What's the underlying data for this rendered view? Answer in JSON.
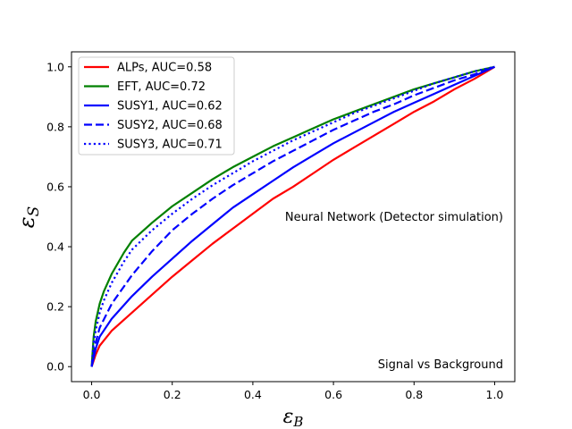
{
  "chart_data": {
    "type": "line",
    "xlabel_main": "ε",
    "xlabel_sub": "B",
    "ylabel_main": "ε",
    "ylabel_sub": "S",
    "xlim": [
      -0.05,
      1.05
    ],
    "ylim": [
      -0.05,
      1.05
    ],
    "xticks": [
      0.0,
      0.2,
      0.4,
      0.6,
      0.8,
      1.0
    ],
    "yticks": [
      0.0,
      0.2,
      0.4,
      0.6,
      0.8,
      1.0
    ],
    "xtick_labels": [
      "0.0",
      "0.2",
      "0.4",
      "0.6",
      "0.8",
      "1.0"
    ],
    "ytick_labels": [
      "0.0",
      "0.2",
      "0.4",
      "0.6",
      "0.8",
      "1.0"
    ],
    "grid": false,
    "legend_position": "top-left",
    "annotations": {
      "method": "Neural Network (Detector simulation)",
      "task": "Signal vs Background"
    },
    "series": [
      {
        "name": "ALPs, AUC=0.58",
        "color": "#ff0000",
        "dash": "solid",
        "x": [
          0,
          0.01,
          0.02,
          0.05,
          0.1,
          0.15,
          0.2,
          0.25,
          0.3,
          0.35,
          0.4,
          0.45,
          0.5,
          0.55,
          0.6,
          0.65,
          0.7,
          0.75,
          0.8,
          0.85,
          0.9,
          0.95,
          1.0
        ],
        "y": [
          0,
          0.04,
          0.07,
          0.12,
          0.18,
          0.24,
          0.3,
          0.355,
          0.41,
          0.46,
          0.51,
          0.56,
          0.6,
          0.645,
          0.69,
          0.73,
          0.77,
          0.81,
          0.85,
          0.885,
          0.925,
          0.96,
          1.0
        ]
      },
      {
        "name": "EFT, AUC=0.72",
        "color": "#008000",
        "dash": "solid",
        "x": [
          0,
          0.005,
          0.01,
          0.02,
          0.03,
          0.05,
          0.08,
          0.1,
          0.15,
          0.2,
          0.25,
          0.3,
          0.35,
          0.4,
          0.45,
          0.5,
          0.55,
          0.6,
          0.65,
          0.7,
          0.75,
          0.8,
          0.85,
          0.9,
          0.95,
          1.0
        ],
        "y": [
          0,
          0.1,
          0.15,
          0.21,
          0.25,
          0.31,
          0.38,
          0.42,
          0.48,
          0.535,
          0.58,
          0.625,
          0.665,
          0.7,
          0.735,
          0.765,
          0.795,
          0.825,
          0.85,
          0.875,
          0.9,
          0.925,
          0.945,
          0.965,
          0.985,
          1.0
        ]
      },
      {
        "name": "SUSY1, AUC=0.62",
        "color": "#0000ff",
        "dash": "solid",
        "x": [
          0,
          0.01,
          0.02,
          0.05,
          0.1,
          0.15,
          0.2,
          0.25,
          0.3,
          0.35,
          0.4,
          0.45,
          0.5,
          0.55,
          0.6,
          0.65,
          0.7,
          0.75,
          0.8,
          0.85,
          0.9,
          0.95,
          1.0
        ],
        "y": [
          0,
          0.06,
          0.1,
          0.16,
          0.235,
          0.3,
          0.36,
          0.42,
          0.475,
          0.53,
          0.575,
          0.62,
          0.665,
          0.705,
          0.745,
          0.78,
          0.815,
          0.85,
          0.88,
          0.91,
          0.94,
          0.97,
          1.0
        ]
      },
      {
        "name": "SUSY2, AUC=0.68",
        "color": "#0000ff",
        "dash": "dashed",
        "x": [
          0,
          0.01,
          0.02,
          0.05,
          0.1,
          0.15,
          0.2,
          0.25,
          0.3,
          0.35,
          0.4,
          0.45,
          0.5,
          0.55,
          0.6,
          0.65,
          0.7,
          0.75,
          0.8,
          0.85,
          0.9,
          0.95,
          1.0
        ],
        "y": [
          0,
          0.08,
          0.13,
          0.21,
          0.305,
          0.385,
          0.455,
          0.51,
          0.56,
          0.605,
          0.645,
          0.685,
          0.72,
          0.755,
          0.79,
          0.82,
          0.85,
          0.875,
          0.905,
          0.93,
          0.955,
          0.975,
          1.0
        ]
      },
      {
        "name": "SUSY3, AUC=0.71",
        "color": "#0000ff",
        "dash": "dotted",
        "x": [
          0,
          0.005,
          0.01,
          0.02,
          0.03,
          0.05,
          0.08,
          0.1,
          0.15,
          0.2,
          0.25,
          0.3,
          0.35,
          0.4,
          0.45,
          0.5,
          0.55,
          0.6,
          0.65,
          0.7,
          0.75,
          0.8,
          0.85,
          0.9,
          0.95,
          1.0
        ],
        "y": [
          0,
          0.08,
          0.12,
          0.18,
          0.22,
          0.28,
          0.35,
          0.39,
          0.455,
          0.51,
          0.56,
          0.605,
          0.645,
          0.685,
          0.72,
          0.755,
          0.785,
          0.815,
          0.845,
          0.87,
          0.895,
          0.92,
          0.945,
          0.965,
          0.985,
          1.0
        ]
      }
    ]
  }
}
